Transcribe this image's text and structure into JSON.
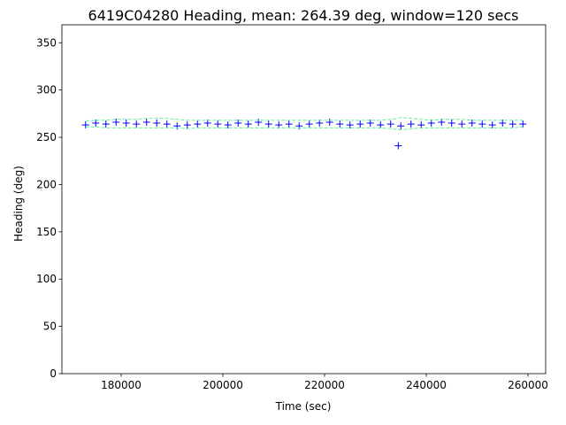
{
  "chart_data": {
    "type": "scatter",
    "title": "6419C04280 Heading, mean: 264.39 deg, window=120 secs",
    "xlabel": "Time (sec)",
    "ylabel": "Heading (deg)",
    "x": [
      173000,
      175000,
      177000,
      179000,
      181000,
      183000,
      185000,
      187000,
      189000,
      191000,
      193000,
      195000,
      197000,
      199000,
      201000,
      203000,
      205000,
      207000,
      209000,
      211000,
      213000,
      215000,
      217000,
      219000,
      221000,
      223000,
      225000,
      227000,
      229000,
      231000,
      233000,
      234500,
      235000,
      237000,
      239000,
      241000,
      243000,
      245000,
      247000,
      249000,
      251000,
      253000,
      255000,
      257000,
      259000
    ],
    "series": [
      {
        "color": "#0000ff",
        "marker": "+",
        "values": [
          263,
          265,
          264,
          266,
          265,
          264,
          266,
          265,
          264,
          262,
          263,
          264,
          265,
          264,
          263,
          265,
          264,
          266,
          264,
          263,
          264,
          262,
          264,
          265,
          266,
          264,
          263,
          264,
          265,
          263,
          264,
          241,
          262,
          264,
          263,
          265,
          266,
          265,
          264,
          265,
          264,
          263,
          265,
          264,
          264
        ]
      },
      {
        "color": "#66ee99",
        "linestyle": "dashed",
        "values": [
          267,
          268,
          268,
          269,
          269,
          269,
          270,
          270,
          270,
          269,
          268,
          268,
          268,
          268,
          268,
          268,
          268,
          268,
          268,
          268,
          268,
          268,
          268,
          268,
          268,
          268,
          268,
          268,
          268,
          268,
          269,
          270,
          271,
          270,
          269,
          268,
          269,
          269,
          269,
          268,
          268,
          268,
          268,
          268,
          268
        ]
      },
      {
        "color": "#66ee99",
        "linestyle": "dashed",
        "values": [
          261,
          261,
          260,
          260,
          260,
          260,
          260,
          260,
          260,
          260,
          259,
          260,
          260,
          260,
          260,
          260,
          260,
          260,
          260,
          260,
          260,
          260,
          260,
          260,
          260,
          260,
          260,
          260,
          260,
          260,
          259,
          258,
          258,
          259,
          260,
          260,
          260,
          260,
          260,
          260,
          260,
          260,
          260,
          260,
          261
        ]
      }
    ],
    "xlim": [
      168350,
      263480
    ],
    "ylim": [
      0,
      369
    ],
    "xticks": [
      180000,
      200000,
      220000,
      240000,
      260000
    ],
    "yticks": [
      0,
      50,
      100,
      150,
      200,
      250,
      300,
      350
    ]
  }
}
